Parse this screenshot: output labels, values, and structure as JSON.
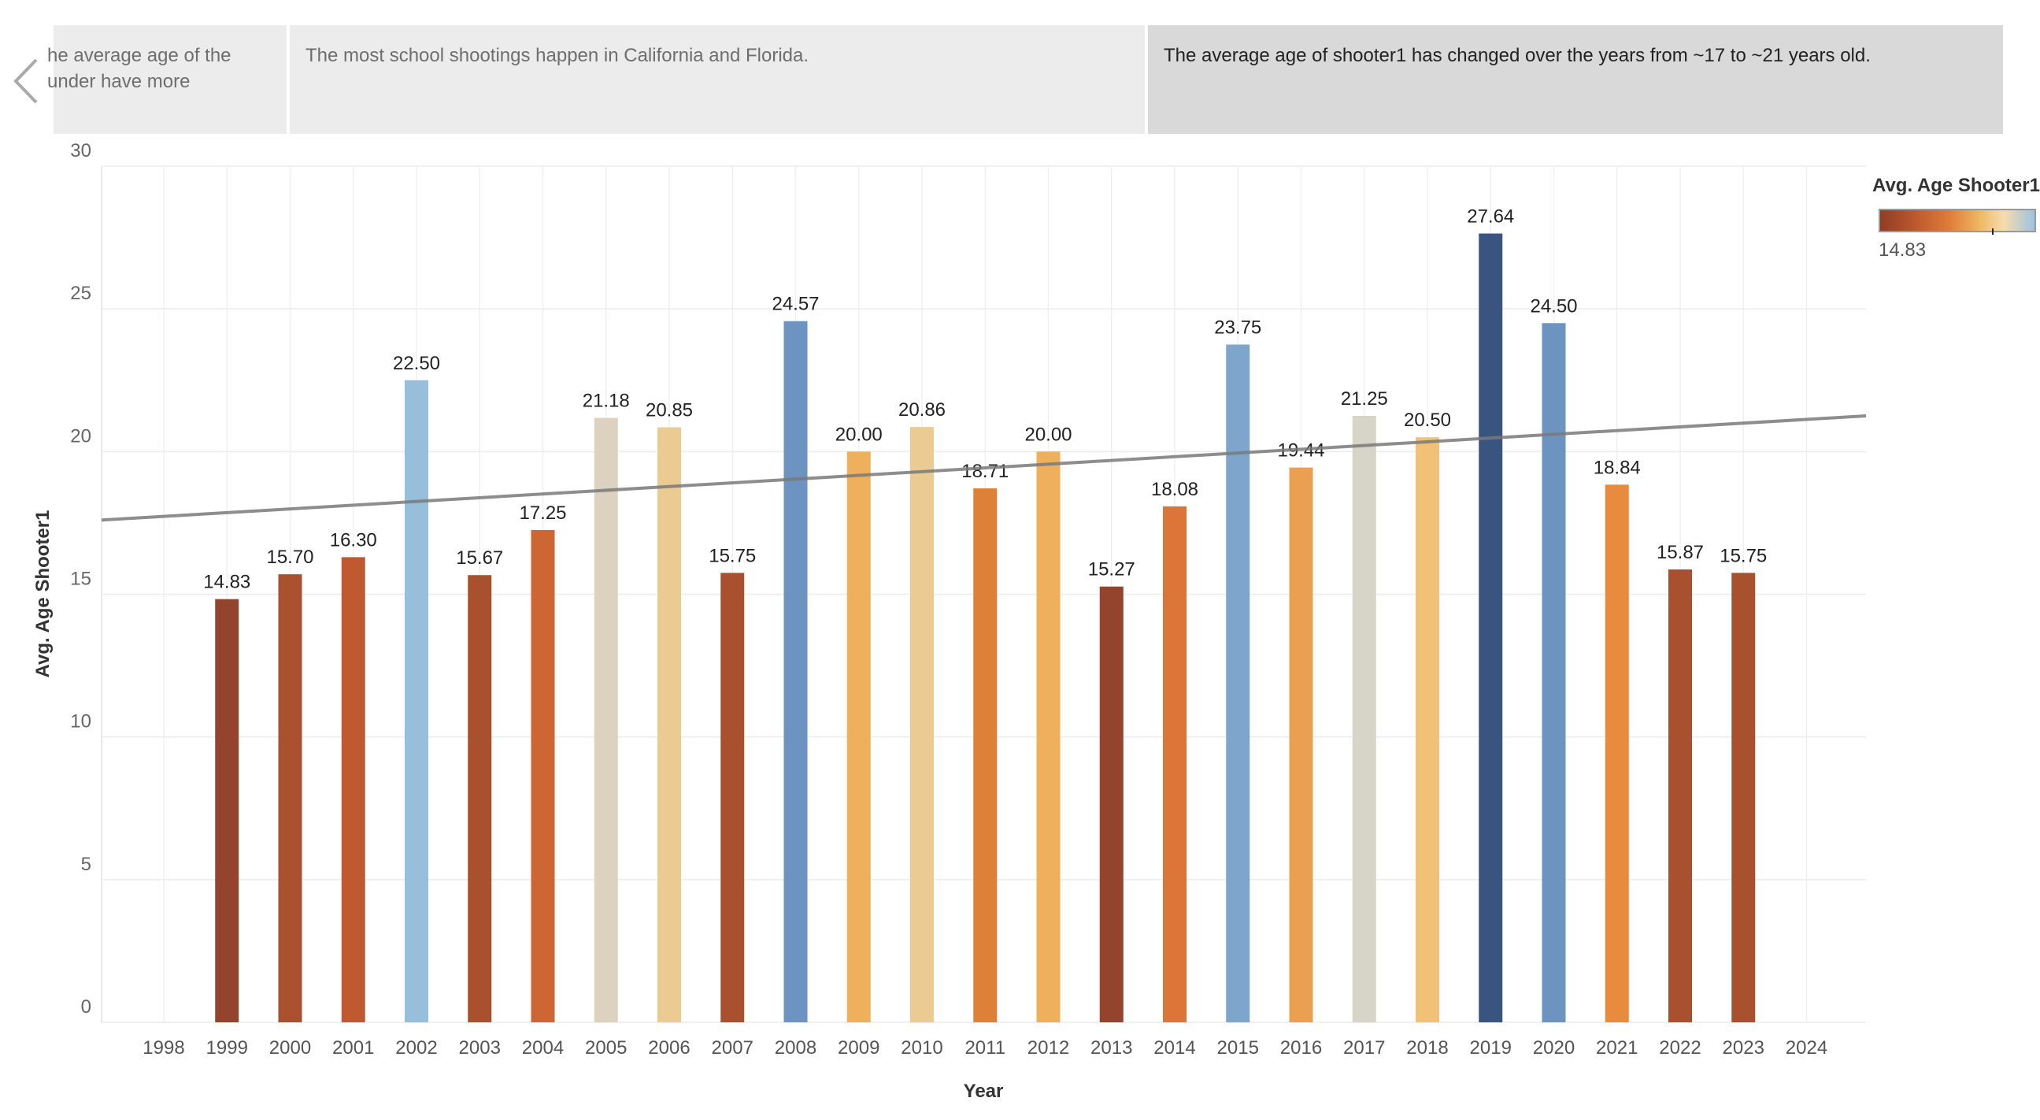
{
  "story": {
    "points": [
      {
        "text": "he average age of the under have  more"
      },
      {
        "text": "The most school shootings happen in California and Florida."
      },
      {
        "text": "The average age of shooter1 has changed over the years from ~17  to ~21 years old."
      }
    ]
  },
  "legend": {
    "title": "Avg. Age Shooter1",
    "min_label": "14.83"
  },
  "chart_data": {
    "type": "bar",
    "xlabel": "Year",
    "ylabel": "Avg. Age Shooter1",
    "ylim": [
      0,
      30
    ],
    "yticks": [
      0,
      5,
      10,
      15,
      20,
      25,
      30
    ],
    "categories": [
      "1998",
      "1999",
      "2000",
      "2001",
      "2002",
      "2003",
      "2004",
      "2005",
      "2006",
      "2007",
      "2008",
      "2009",
      "2010",
      "2011",
      "2012",
      "2013",
      "2014",
      "2015",
      "2016",
      "2017",
      "2018",
      "2019",
      "2020",
      "2021",
      "2022",
      "2023",
      "2024"
    ],
    "values": [
      null,
      14.83,
      15.7,
      16.3,
      22.5,
      15.67,
      17.25,
      21.18,
      20.85,
      15.75,
      24.57,
      20.0,
      20.86,
      18.71,
      20.0,
      15.27,
      18.08,
      23.75,
      19.44,
      21.25,
      20.5,
      27.64,
      24.5,
      18.84,
      15.87,
      15.75,
      null
    ],
    "labels": [
      "",
      "14.83",
      "15.70",
      "16.30",
      "22.50",
      "15.67",
      "17.25",
      "21.18",
      "20.85",
      "15.75",
      "24.57",
      "20.00",
      "20.86",
      "18.71",
      "20.00",
      "15.27",
      "18.08",
      "23.75",
      "19.44",
      "21.25",
      "20.50",
      "27.64",
      "24.50",
      "18.84",
      "15.87",
      "15.75",
      ""
    ],
    "colors": [
      null,
      "#94432c",
      "#a9502f",
      "#c0592f",
      "#97bedb",
      "#a9502f",
      "#cc6733",
      "#ddd2c0",
      "#eccb93",
      "#a9502f",
      "#6d93c0",
      "#efb05d",
      "#eccb93",
      "#de8138",
      "#efb05d",
      "#94432c",
      "#db7538",
      "#7ea6cc",
      "#eb9f51",
      "#d7d4c8",
      "#f1c178",
      "#39557f",
      "#6d93c0",
      "#e88b3f",
      "#a9502f",
      "#a9502f",
      null
    ],
    "trendline": {
      "start": 17.6,
      "end": 21.25
    },
    "grid": true,
    "legend_position": "top-right"
  }
}
